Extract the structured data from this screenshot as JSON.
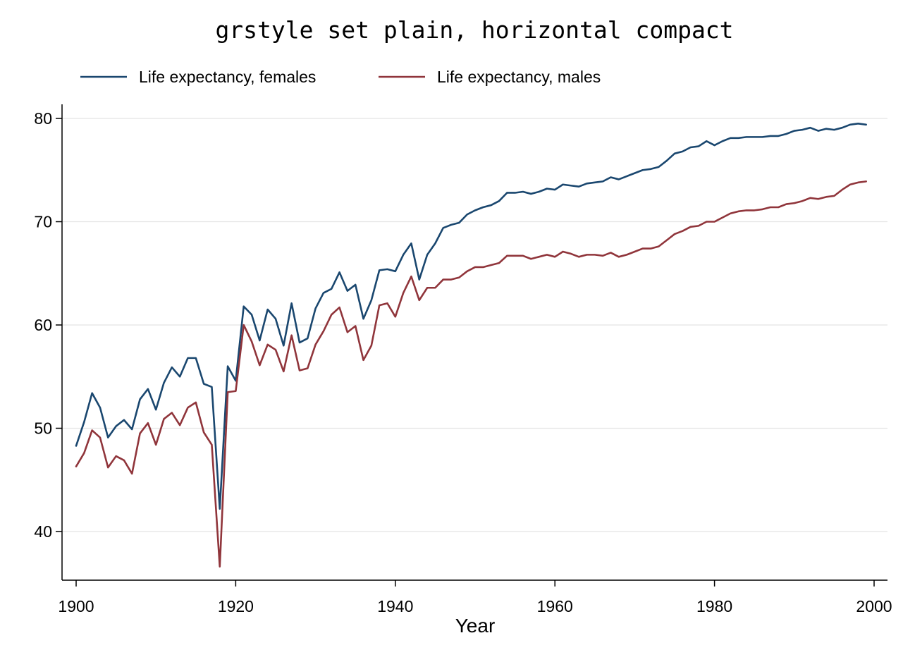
{
  "chart_data": {
    "type": "line",
    "title": "grstyle set plain, horizontal compact",
    "xlabel": "Year",
    "ylabel": "",
    "xlim": [
      1900,
      2000
    ],
    "ylim": [
      35.5,
      81.2
    ],
    "xticks": [
      1900,
      1920,
      1940,
      1960,
      1980,
      2000
    ],
    "yticks": [
      40,
      50,
      60,
      70,
      80
    ],
    "grid": "horizontal",
    "legend_position": "top",
    "x": [
      1900,
      1901,
      1902,
      1903,
      1904,
      1905,
      1906,
      1907,
      1908,
      1909,
      1910,
      1911,
      1912,
      1913,
      1914,
      1915,
      1916,
      1917,
      1918,
      1919,
      1920,
      1921,
      1922,
      1923,
      1924,
      1925,
      1926,
      1927,
      1928,
      1929,
      1930,
      1931,
      1932,
      1933,
      1934,
      1935,
      1936,
      1937,
      1938,
      1939,
      1940,
      1941,
      1942,
      1943,
      1944,
      1945,
      1946,
      1947,
      1948,
      1949,
      1950,
      1951,
      1952,
      1953,
      1954,
      1955,
      1956,
      1957,
      1958,
      1959,
      1960,
      1961,
      1962,
      1963,
      1964,
      1965,
      1966,
      1967,
      1968,
      1969,
      1970,
      1971,
      1972,
      1973,
      1974,
      1975,
      1976,
      1977,
      1978,
      1979,
      1980,
      1981,
      1982,
      1983,
      1984,
      1985,
      1986,
      1987,
      1988,
      1989,
      1990,
      1991,
      1992,
      1993,
      1994,
      1995,
      1996,
      1997,
      1998,
      1999
    ],
    "series": [
      {
        "name": "Life expectancy, females",
        "color": "#1a476f",
        "values": [
          48.3,
          50.6,
          53.4,
          52.0,
          49.1,
          50.2,
          50.8,
          49.9,
          52.8,
          53.8,
          51.8,
          54.4,
          55.9,
          55.0,
          56.8,
          56.8,
          54.3,
          54.0,
          42.2,
          56.0,
          54.6,
          61.8,
          61.0,
          58.5,
          61.5,
          60.6,
          58.0,
          62.1,
          58.3,
          58.7,
          61.6,
          63.1,
          63.5,
          65.1,
          63.3,
          63.9,
          60.6,
          62.4,
          65.3,
          65.4,
          65.2,
          66.8,
          67.9,
          64.4,
          66.8,
          67.9,
          69.4,
          69.7,
          69.9,
          70.7,
          71.1,
          71.4,
          71.6,
          72.0,
          72.8,
          72.8,
          72.9,
          72.7,
          72.9,
          73.2,
          73.1,
          73.6,
          73.5,
          73.4,
          73.7,
          73.8,
          73.9,
          74.3,
          74.1,
          74.4,
          74.7,
          75.0,
          75.1,
          75.3,
          75.9,
          76.6,
          76.8,
          77.2,
          77.3,
          77.8,
          77.4,
          77.8,
          78.1,
          78.1,
          78.2,
          78.2,
          78.2,
          78.3,
          78.3,
          78.5,
          78.8,
          78.9,
          79.1,
          78.8,
          79.0,
          78.9,
          79.1,
          79.4,
          79.5,
          79.4
        ]
      },
      {
        "name": "Life expectancy, males",
        "color": "#90353b",
        "values": [
          46.3,
          47.6,
          49.8,
          49.1,
          46.2,
          47.3,
          46.9,
          45.6,
          49.5,
          50.5,
          48.4,
          50.9,
          51.5,
          50.3,
          52.0,
          52.5,
          49.6,
          48.4,
          36.6,
          53.5,
          53.6,
          60.0,
          58.4,
          56.1,
          58.1,
          57.6,
          55.5,
          59.0,
          55.6,
          55.8,
          58.1,
          59.4,
          61.0,
          61.7,
          59.3,
          59.9,
          56.6,
          58.0,
          61.9,
          62.1,
          60.8,
          63.1,
          64.7,
          62.4,
          63.6,
          63.6,
          64.4,
          64.4,
          64.6,
          65.2,
          65.6,
          65.6,
          65.8,
          66.0,
          66.7,
          66.7,
          66.7,
          66.4,
          66.6,
          66.8,
          66.6,
          67.1,
          66.9,
          66.6,
          66.8,
          66.8,
          66.7,
          67.0,
          66.6,
          66.8,
          67.1,
          67.4,
          67.4,
          67.6,
          68.2,
          68.8,
          69.1,
          69.5,
          69.6,
          70.0,
          70.0,
          70.4,
          70.8,
          71.0,
          71.1,
          71.1,
          71.2,
          71.4,
          71.4,
          71.7,
          71.8,
          72.0,
          72.3,
          72.2,
          72.4,
          72.5,
          73.1,
          73.6,
          73.8,
          73.9
        ]
      }
    ]
  }
}
